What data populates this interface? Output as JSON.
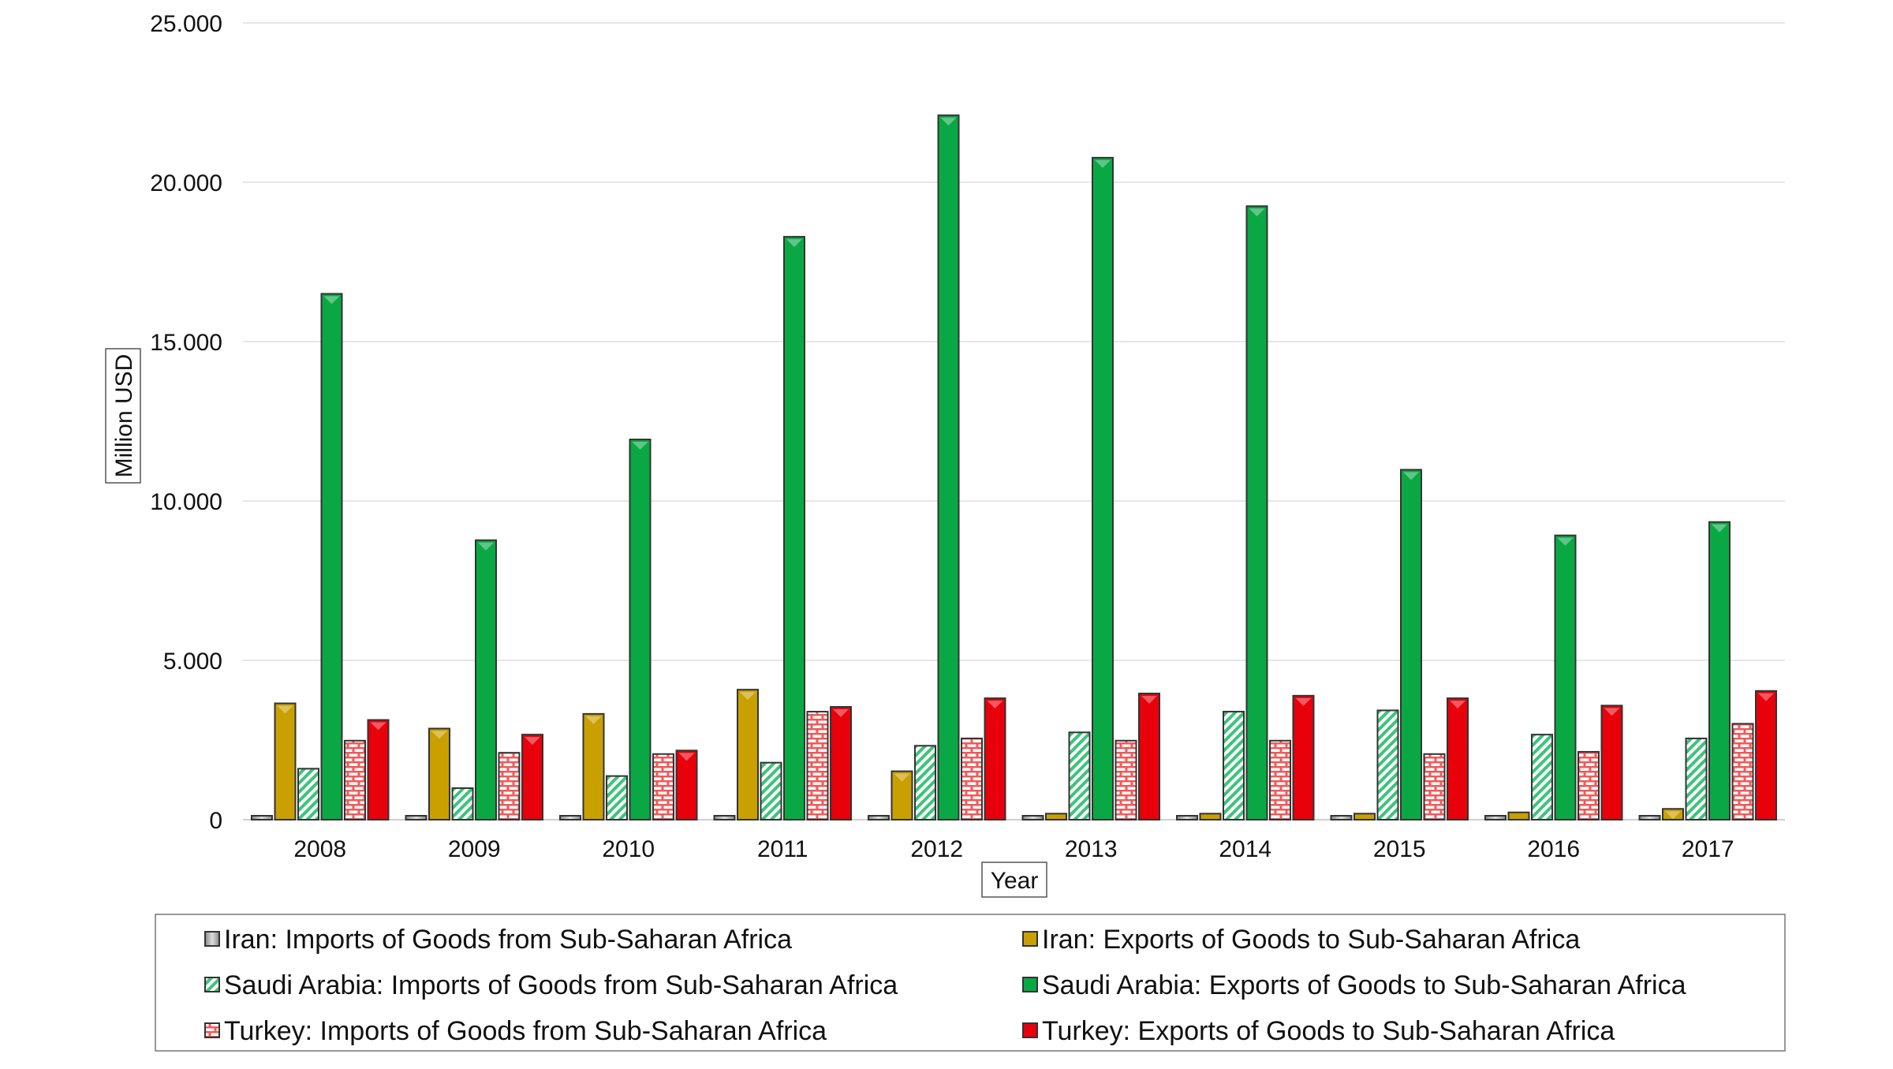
{
  "chart_data": {
    "type": "bar",
    "title": "",
    "xlabel": "Year",
    "ylabel": "Million USD",
    "ylim": [
      0,
      25000
    ],
    "yticks": [
      "0",
      "5.000",
      "10.000",
      "15.000",
      "20.000",
      "25.000"
    ],
    "ytick_values": [
      0,
      5000,
      10000,
      15000,
      20000,
      25000
    ],
    "grid": true,
    "legend_position": "bottom",
    "categories": [
      "2008",
      "2009",
      "2010",
      "2011",
      "2012",
      "2013",
      "2014",
      "2015",
      "2016",
      "2017"
    ],
    "series": [
      {
        "name": "Iran: Imports of Goods from Sub-Saharan Africa",
        "color": "#d9d9d9",
        "pattern": "plain-grey",
        "values": [
          50,
          50,
          50,
          50,
          30,
          20,
          20,
          20,
          20,
          80
        ]
      },
      {
        "name": "Iran: Exports of Goods to Sub-Saharan Africa",
        "color": "#c9a000",
        "pattern": "solid",
        "values": [
          3650,
          2860,
          3320,
          4080,
          1520,
          190,
          190,
          190,
          230,
          340
        ]
      },
      {
        "name": "Saudi Arabia: Imports of Goods from Sub-Saharan Africa",
        "color": "#3cc47a",
        "pattern": "diagonal-hatch",
        "values": [
          1600,
          990,
          1370,
          1790,
          2320,
          2740,
          3390,
          3430,
          2670,
          2550
        ]
      },
      {
        "name": "Saudi Arabia: Exports of Goods to Sub-Saharan Africa",
        "color": "#0aa845",
        "pattern": "solid",
        "values": [
          16500,
          8770,
          11930,
          18290,
          22100,
          20770,
          19250,
          10980,
          8920,
          9340
        ]
      },
      {
        "name": "Turkey: Imports of Goods from Sub-Saharan Africa",
        "color": "#f05a5a",
        "pattern": "brick",
        "values": [
          2480,
          2100,
          2060,
          3390,
          2550,
          2480,
          2480,
          2060,
          2130,
          3010
        ]
      },
      {
        "name": "Turkey: Exports of Goods to Sub-Saharan Africa",
        "color": "#e8000b",
        "pattern": "solid",
        "values": [
          3130,
          2670,
          2170,
          3540,
          3810,
          3960,
          3890,
          3810,
          3580,
          4040
        ]
      }
    ]
  }
}
